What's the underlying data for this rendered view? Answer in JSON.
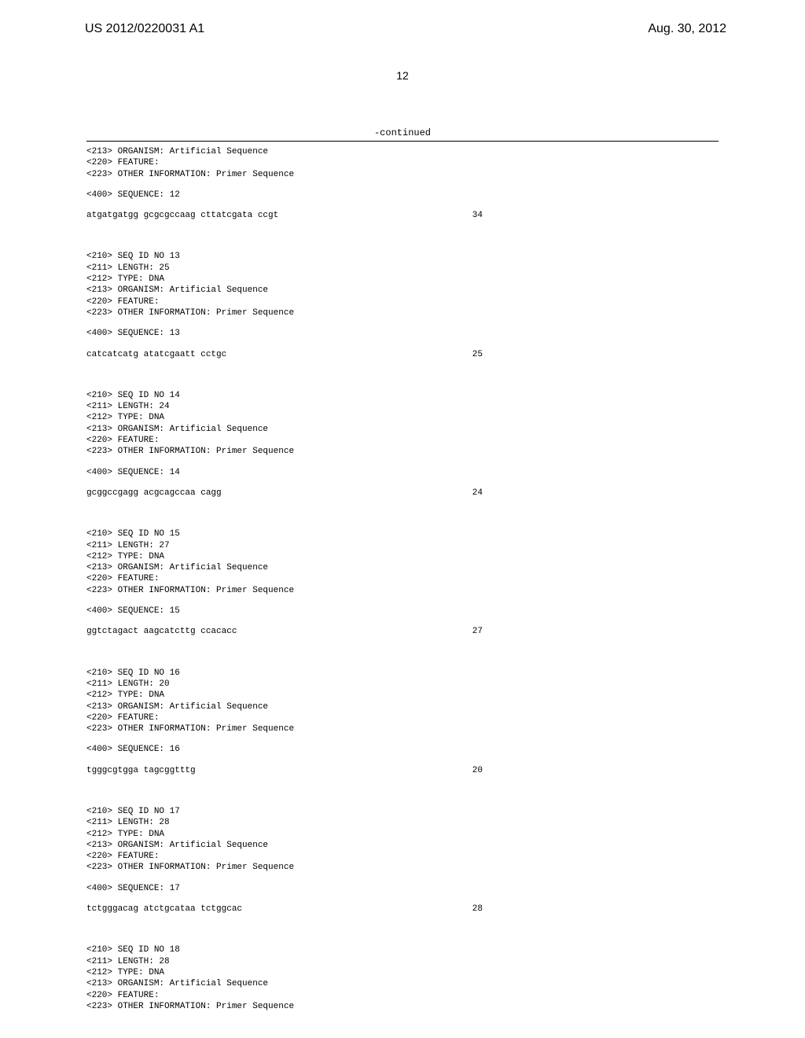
{
  "header": {
    "pub_number": "US 2012/0220031 A1",
    "pub_date": "Aug. 30, 2012",
    "page_number": "12",
    "continued_label": "-continued"
  },
  "seq_213_prefix": "<213> ORGANISM: Artificial Sequence",
  "seq_220_prefix": "<220> FEATURE:",
  "seq_223_prefix": "<223> OTHER INFORMATION: Primer Sequence",
  "sequences": [
    {
      "header_210": "",
      "header_211": "",
      "header_212": "",
      "seq_num": "<400> SEQUENCE: 12",
      "sequence": "atgatgatgg gcgcgccaag cttatcgata ccgt",
      "length": "34"
    },
    {
      "header_210": "<210> SEQ ID NO 13",
      "header_211": "<211> LENGTH: 25",
      "header_212": "<212> TYPE: DNA",
      "seq_num": "<400> SEQUENCE: 13",
      "sequence": "catcatcatg atatcgaatt cctgc",
      "length": "25"
    },
    {
      "header_210": "<210> SEQ ID NO 14",
      "header_211": "<211> LENGTH: 24",
      "header_212": "<212> TYPE: DNA",
      "seq_num": "<400> SEQUENCE: 14",
      "sequence": "gcggccgagg acgcagccaa cagg",
      "length": "24"
    },
    {
      "header_210": "<210> SEQ ID NO 15",
      "header_211": "<211> LENGTH: 27",
      "header_212": "<212> TYPE: DNA",
      "seq_num": "<400> SEQUENCE: 15",
      "sequence": "ggtctagact aagcatcttg ccacacc",
      "length": "27"
    },
    {
      "header_210": "<210> SEQ ID NO 16",
      "header_211": "<211> LENGTH: 20",
      "header_212": "<212> TYPE: DNA",
      "seq_num": "<400> SEQUENCE: 16",
      "sequence": "tgggcgtgga tagcggtttg",
      "length": "20"
    },
    {
      "header_210": "<210> SEQ ID NO 17",
      "header_211": "<211> LENGTH: 28",
      "header_212": "<212> TYPE: DNA",
      "seq_num": "<400> SEQUENCE: 17",
      "sequence": "tctgggacag atctgcataa tctggcac",
      "length": "28"
    },
    {
      "header_210": "<210> SEQ ID NO 18",
      "header_211": "<211> LENGTH: 28",
      "header_212": "<212> TYPE: DNA",
      "seq_num": "",
      "sequence": "",
      "length": ""
    }
  ]
}
